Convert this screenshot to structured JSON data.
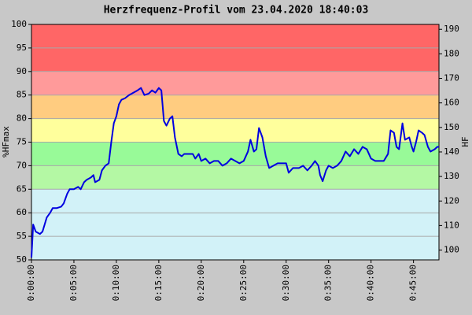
{
  "chart_data": {
    "type": "line",
    "title": "Herzfrequenz-Profil vom 23.04.2020 18:40:03",
    "ylabel": "%HFmax",
    "y2label": "HF",
    "ylim": [
      50,
      100
    ],
    "yticks": [
      50,
      55,
      60,
      65,
      70,
      75,
      80,
      85,
      90,
      95,
      100
    ],
    "y2lim": [
      96,
      192
    ],
    "y2ticks": [
      100,
      110,
      120,
      130,
      140,
      150,
      160,
      170,
      180,
      190
    ],
    "xlim": [
      0,
      48
    ],
    "xticks": [
      {
        "value": 0,
        "label": "0:00:00"
      },
      {
        "value": 5,
        "label": "0:05:00"
      },
      {
        "value": 10,
        "label": "0:10:00"
      },
      {
        "value": 15,
        "label": "0:15:00"
      },
      {
        "value": 20,
        "label": "0:20:00"
      },
      {
        "value": 25,
        "label": "0:25:00"
      },
      {
        "value": 30,
        "label": "0:30:00"
      },
      {
        "value": 35,
        "label": "0:35:00"
      },
      {
        "value": 40,
        "label": "0:40:00"
      },
      {
        "value": 45,
        "label": "0:45:00"
      }
    ],
    "grid": true,
    "bands": [
      {
        "range": [
          50,
          65
        ],
        "color": "#d2f2f8"
      },
      {
        "range": [
          65,
          70
        ],
        "color": "#b4f8a4"
      },
      {
        "range": [
          70,
          75
        ],
        "color": "#98fa98"
      },
      {
        "range": [
          75,
          80
        ],
        "color": "#ffff9c"
      },
      {
        "range": [
          80,
          85
        ],
        "color": "#ffcc80"
      },
      {
        "range": [
          85,
          90
        ],
        "color": "#ff9a9a"
      },
      {
        "range": [
          90,
          100
        ],
        "color": "#ff6666"
      }
    ],
    "series": [
      {
        "color": "#0000e0",
        "x": [
          0,
          0.2,
          0.5,
          1,
          1.3,
          1.8,
          2.2,
          2.5,
          3,
          3.5,
          3.8,
          4.2,
          4.5,
          5,
          5.5,
          5.8,
          6.2,
          6.5,
          7,
          7.3,
          7.5,
          8,
          8.3,
          8.7,
          9.1,
          9.4,
          9.7,
          10,
          10.3,
          10.6,
          11,
          11.5,
          12,
          12.5,
          12.9,
          13.3,
          13.8,
          14.2,
          14.6,
          15,
          15.3,
          15.6,
          15.9,
          16.3,
          16.6,
          16.9,
          17.3,
          17.7,
          18,
          18.5,
          19,
          19.3,
          19.7,
          20,
          20.5,
          21,
          21.5,
          22,
          22.5,
          23,
          23.5,
          24,
          24.5,
          25,
          25.5,
          25.8,
          26.2,
          26.5,
          26.8,
          27.2,
          27.6,
          28,
          28.5,
          29,
          29.5,
          30,
          30.3,
          30.8,
          31.5,
          32,
          32.5,
          33,
          33.4,
          33.8,
          34,
          34.3,
          34.7,
          35,
          35.5,
          36,
          36.5,
          37,
          37.5,
          38,
          38.5,
          39,
          39.5,
          40,
          40.5,
          41,
          41.5,
          42,
          42.3,
          42.7,
          43,
          43.3,
          43.7,
          44,
          44.5,
          44.8,
          45,
          45.3,
          45.6,
          46,
          46.3,
          46.7,
          47,
          47.5,
          47.8,
          48
        ],
        "values": [
          50.5,
          57.5,
          56,
          55.5,
          56,
          59,
          60,
          61,
          61,
          61.3,
          62,
          64,
          65,
          65,
          65.5,
          65,
          66.5,
          67,
          67.5,
          68,
          66.5,
          67,
          69,
          70,
          70.5,
          75,
          79,
          80.5,
          83,
          84,
          84.3,
          85,
          85.5,
          86,
          86.5,
          85,
          85.3,
          86,
          85.5,
          86.5,
          86,
          79.5,
          78.5,
          80,
          80.5,
          76,
          72.5,
          72,
          72.5,
          72.5,
          72.5,
          71.5,
          72.5,
          71,
          71.5,
          70.5,
          71,
          71,
          70,
          70.5,
          71.5,
          71,
          70.5,
          71,
          73,
          75.5,
          73,
          73.5,
          78,
          76,
          72,
          69.5,
          70,
          70.5,
          70.5,
          70.5,
          68.5,
          69.5,
          69.5,
          70,
          69,
          70,
          71,
          70,
          68,
          66.7,
          69,
          70,
          69.5,
          70,
          71,
          73,
          72,
          73.5,
          72.5,
          74,
          73.5,
          71.5,
          71,
          71,
          71,
          72.5,
          77.5,
          77,
          74,
          73.5,
          79,
          75.5,
          76,
          74,
          73,
          75,
          77.5,
          77,
          76.5,
          74,
          73,
          73.5,
          74,
          74
        ]
      }
    ]
  }
}
